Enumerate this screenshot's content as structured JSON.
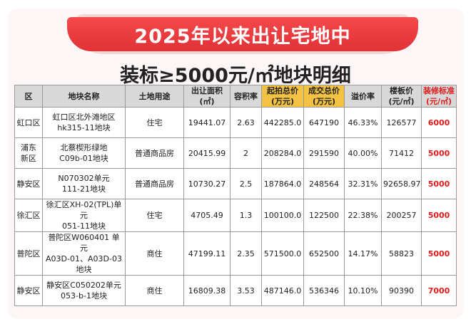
{
  "banner": {
    "title": "2025年以来出让宅地中"
  },
  "subtitle": "装标≥5000元/㎡地块明细",
  "table": {
    "headers": [
      {
        "lines": [
          "区"
        ]
      },
      {
        "lines": [
          "地块名称"
        ]
      },
      {
        "lines": [
          "土地用途"
        ]
      },
      {
        "lines": [
          "出让面积",
          "(㎡)"
        ]
      },
      {
        "lines": [
          "容积率"
        ]
      },
      {
        "lines": [
          "起拍总价",
          "(万元)"
        ]
      },
      {
        "lines": [
          "成交总价",
          "(万元)"
        ]
      },
      {
        "lines": [
          "溢价率"
        ]
      },
      {
        "lines": [
          "楼板价",
          "(元/㎡)"
        ]
      },
      {
        "lines": [
          "装修标准",
          "(元/㎡)"
        ]
      }
    ],
    "rows": [
      {
        "district": [
          "虹口区"
        ],
        "plot": [
          "虹口区北外滩地区",
          "hk315-11地块"
        ],
        "use": "住宅",
        "area": "19441.07",
        "far": "2.63",
        "start_price": "442285.0",
        "deal_price": "647190",
        "premium": "46.33%",
        "floor_price": "126577",
        "decoration": "6000"
      },
      {
        "district": [
          "浦东",
          "新区"
        ],
        "plot": [
          "北蔡楔形绿地",
          "C09b-01地块"
        ],
        "use": "普通商品房",
        "area": "20415.99",
        "far": "2",
        "start_price": "208284.0",
        "deal_price": "291590",
        "premium": "40.00%",
        "floor_price": "71412",
        "decoration": "5000"
      },
      {
        "district": [
          "静安区"
        ],
        "plot": [
          "N070302单元",
          "111-21地块"
        ],
        "use": "普通商品房",
        "area": "10730.27",
        "far": "2.5",
        "start_price": "187864.0",
        "deal_price": "248564",
        "premium": "32.31%",
        "floor_price": "92658.97",
        "decoration": "5000"
      },
      {
        "district": [
          "徐汇区"
        ],
        "plot": [
          "徐汇区XH-02(TPL)单元",
          "051-11地块"
        ],
        "use": "住宅",
        "area": "4705.49",
        "far": "1.3",
        "start_price": "100100.0",
        "deal_price": "122500",
        "premium": "22.38%",
        "floor_price": "200257",
        "decoration": "5000"
      },
      {
        "district": [
          "普陀区"
        ],
        "plot": [
          "普陀区W060401 单元",
          "A03D-01、A03D-03 地块"
        ],
        "use": "商住",
        "area": "47199.11",
        "far": "2.35",
        "start_price": "571500.0",
        "deal_price": "652500",
        "premium": "14.17%",
        "floor_price": "58823",
        "decoration": "5000"
      },
      {
        "district": [
          "静安区"
        ],
        "plot": [
          "静安区C050202单元",
          "053-b-1地块"
        ],
        "use": "商住",
        "area": "16809.38",
        "far": "3.53",
        "start_price": "487146.0",
        "deal_price": "536346",
        "premium": "10.10%",
        "floor_price": "90390",
        "decoration": "7000"
      }
    ]
  }
}
